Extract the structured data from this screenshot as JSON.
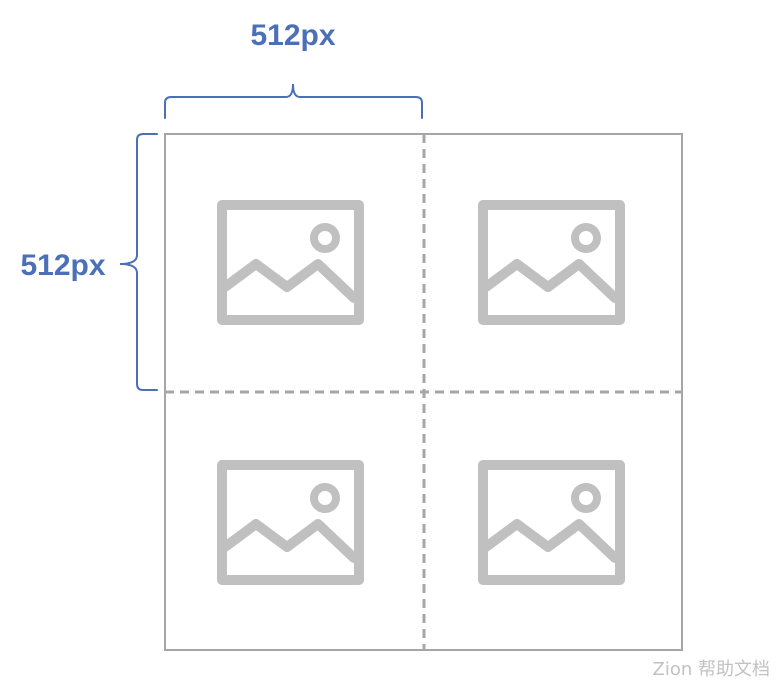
{
  "dimensions": {
    "width_label": "512px",
    "height_label": "512px"
  },
  "grid": {
    "rows": 2,
    "columns": 2,
    "tiles": [
      {
        "icon": "image-placeholder-icon"
      },
      {
        "icon": "image-placeholder-icon"
      },
      {
        "icon": "image-placeholder-icon"
      },
      {
        "icon": "image-placeholder-icon"
      }
    ]
  },
  "colors": {
    "dimension": "#4c70b8",
    "grid_line": "#a6a6a6",
    "icon": "#c0c0c0"
  },
  "watermark": "Zion 帮助文档"
}
